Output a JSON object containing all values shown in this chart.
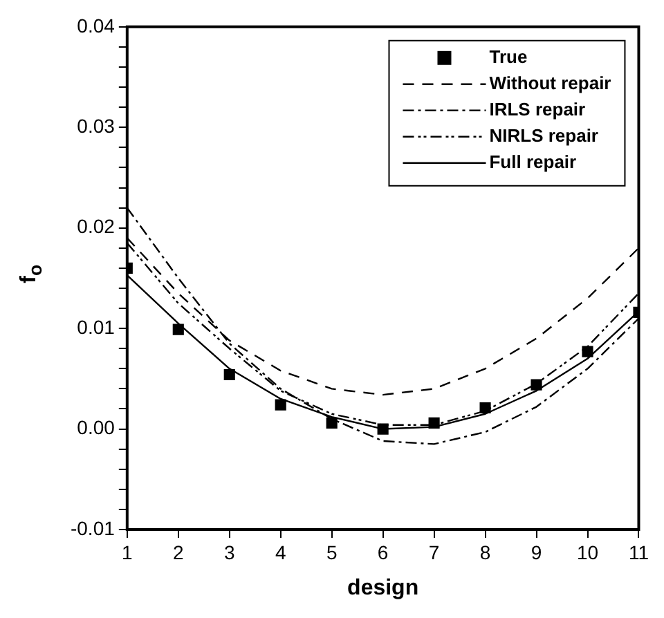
{
  "chart_data": {
    "type": "line",
    "xlabel": "design",
    "ylabel": "f$_{o}$",
    "x": [
      1,
      2,
      3,
      4,
      5,
      6,
      7,
      8,
      9,
      10,
      11
    ],
    "series": [
      {
        "name": "True",
        "type": "scatter",
        "color": "#000000",
        "marker": "square",
        "values": [
          0.016,
          0.0099,
          0.0054,
          0.0024,
          0.0006,
          0.0,
          0.0006,
          0.0021,
          0.0044,
          0.0077,
          0.0116
        ]
      },
      {
        "name": "Without repair",
        "color": "#000000",
        "line_style": "dashed",
        "marker": "none",
        "values": [
          0.019,
          0.0135,
          0.0088,
          0.0058,
          0.004,
          0.0034,
          0.004,
          0.006,
          0.009,
          0.013,
          0.018
        ]
      },
      {
        "name": "IRLS repair",
        "color": "#000000",
        "line_style": "dashdot",
        "marker": "none",
        "values": [
          0.022,
          0.015,
          0.0085,
          0.004,
          0.001,
          -0.0012,
          -0.0015,
          -0.0003,
          0.0022,
          0.006,
          0.011
        ]
      },
      {
        "name": "NIRLS repair",
        "color": "#000000",
        "line_style": "dashdotdot",
        "marker": "none",
        "values": [
          0.0185,
          0.0125,
          0.008,
          0.0038,
          0.0015,
          0.0004,
          0.0004,
          0.0018,
          0.0045,
          0.0082,
          0.0135
        ]
      },
      {
        "name": "Full repair",
        "color": "#000000",
        "line_style": "solid",
        "marker": "none",
        "values": [
          0.0153,
          0.0105,
          0.006,
          0.003,
          0.0012,
          0.0,
          0.0002,
          0.0015,
          0.0038,
          0.007,
          0.0117
        ]
      }
    ],
    "xlim": [
      1,
      11
    ],
    "xticks": [
      1,
      2,
      3,
      4,
      5,
      6,
      7,
      8,
      9,
      10,
      11
    ],
    "ylim": [
      -0.01,
      0.04
    ],
    "yticks": [
      -0.01,
      {
        "value": -0.008,
        "label": null
      },
      {
        "value": -0.006,
        "label": null
      },
      {
        "value": -0.004,
        "label": null
      },
      {
        "value": -0.002,
        "label": null
      },
      {
        "value": 0,
        "label": "0.00"
      },
      {
        "value": 0.002,
        "label": null
      },
      {
        "value": 0.004,
        "label": null
      },
      {
        "value": 0.006,
        "label": null
      },
      {
        "value": 0.008,
        "label": null
      },
      0.01,
      {
        "value": 0.012,
        "label": null
      },
      {
        "value": 0.014,
        "label": null
      },
      {
        "value": 0.016,
        "label": null
      },
      {
        "value": 0.018,
        "label": null
      },
      0.02,
      {
        "value": 0.022,
        "label": null
      },
      {
        "value": 0.024,
        "label": null
      },
      {
        "value": 0.026,
        "label": null
      },
      {
        "value": 0.028,
        "label": null
      },
      0.03,
      {
        "value": 0.032,
        "label": null
      },
      {
        "value": 0.034,
        "label": null
      },
      {
        "value": 0.036,
        "label": null
      },
      {
        "value": 0.038,
        "label": null
      },
      0.04
    ],
    "grid": false,
    "legend": "top right"
  }
}
